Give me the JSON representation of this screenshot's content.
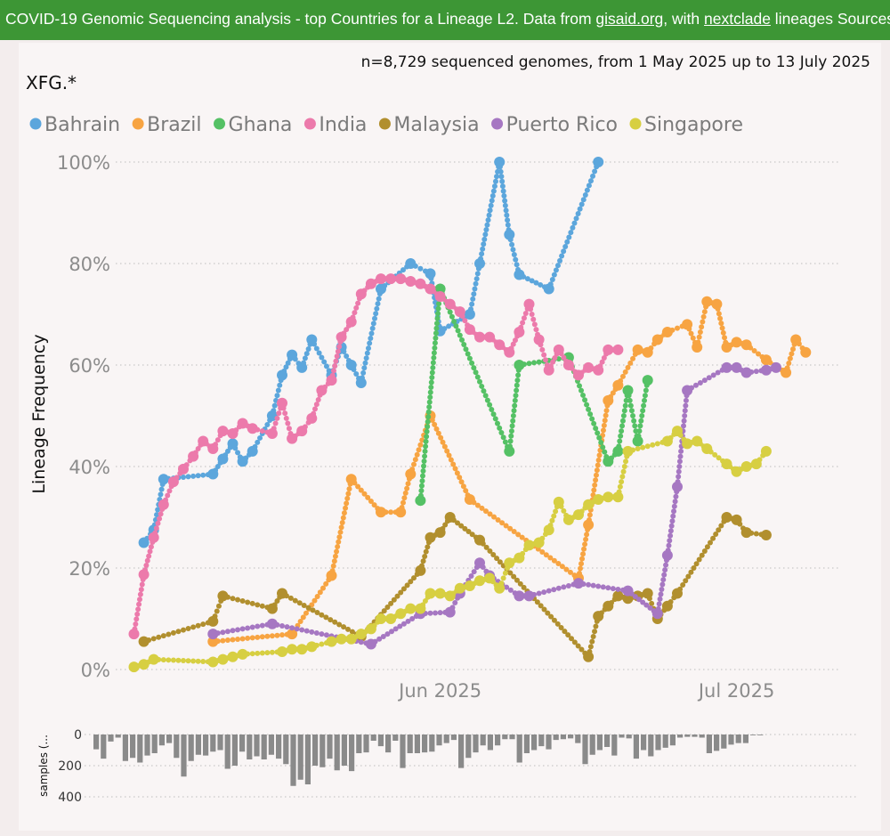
{
  "header": {
    "title_prefix": "COVID-19 Genomic Sequencing analysis - top Countries for a Lineage L2. Data from ",
    "link1": "gisaid.org",
    "title_mid": ", with ",
    "link2": "nextclade",
    "title_suffix": " lineages Sources"
  },
  "chart_data": {
    "type": "line",
    "title": "XFG.*",
    "subtitle": "n=8,729 sequenced genomes, from 1 May 2025 up to 13 July 2025",
    "ylabel": "Lineage Frequency",
    "ylim": [
      0,
      100
    ],
    "y_ticks": [
      "0%",
      "20%",
      "40%",
      "60%",
      "80%",
      "100%"
    ],
    "x_ticks": [
      {
        "day": 31,
        "label": "Jun 2025"
      },
      {
        "day": 61,
        "label": "Jul 2025"
      }
    ],
    "x_unit": "days since 2025-05-01",
    "legend_position": "top-left",
    "series": [
      {
        "name": "Bahrain",
        "color": "#5ca6dc",
        "points": [
          [
            1,
            25
          ],
          [
            2,
            27.5
          ],
          [
            3,
            37.5
          ],
          [
            8,
            38.5
          ],
          [
            9,
            41.5
          ],
          [
            10,
            44.5
          ],
          [
            11,
            41
          ],
          [
            12,
            43
          ],
          [
            14,
            50
          ],
          [
            15,
            58
          ],
          [
            16,
            62
          ],
          [
            17,
            59.5
          ],
          [
            18,
            65
          ],
          [
            20,
            58
          ],
          [
            21,
            63.5
          ],
          [
            22,
            60
          ],
          [
            23,
            56.5
          ],
          [
            25,
            75
          ],
          [
            28,
            80
          ],
          [
            30,
            78
          ],
          [
            31,
            66.7
          ],
          [
            34,
            70
          ],
          [
            35,
            80
          ],
          [
            37,
            100
          ],
          [
            38,
            85.7
          ],
          [
            39,
            77.8
          ],
          [
            42,
            75
          ],
          [
            47,
            100
          ]
        ]
      },
      {
        "name": "Brazil",
        "color": "#f7a442",
        "points": [
          [
            8,
            5.5
          ],
          [
            16,
            7
          ],
          [
            20,
            18.5
          ],
          [
            22,
            37.5
          ],
          [
            25,
            31
          ],
          [
            27,
            31
          ],
          [
            28,
            38.5
          ],
          [
            30,
            50
          ],
          [
            34,
            33.5
          ],
          [
            45,
            18
          ],
          [
            46,
            28.5
          ],
          [
            48,
            53
          ],
          [
            49,
            56
          ],
          [
            51,
            63
          ],
          [
            52,
            62.5
          ],
          [
            53,
            65
          ],
          [
            54,
            66.5
          ],
          [
            56,
            68
          ],
          [
            57,
            63.5
          ],
          [
            58,
            72.5
          ],
          [
            59,
            72
          ],
          [
            60,
            63.5
          ],
          [
            61,
            64.5
          ],
          [
            62,
            64
          ],
          [
            64,
            61
          ],
          [
            66,
            58.5
          ],
          [
            67,
            65
          ],
          [
            68,
            62.5
          ]
        ]
      },
      {
        "name": "Ghana",
        "color": "#55c165",
        "points": [
          [
            29,
            33.3
          ],
          [
            31,
            75
          ],
          [
            38,
            43
          ],
          [
            39,
            60
          ],
          [
            44,
            61.5
          ],
          [
            48,
            41
          ],
          [
            49,
            43
          ],
          [
            50,
            55
          ],
          [
            51,
            45
          ],
          [
            52,
            57
          ]
        ]
      },
      {
        "name": "India",
        "color": "#ec7aab",
        "points": [
          [
            0,
            7
          ],
          [
            1,
            18.7
          ],
          [
            2,
            26
          ],
          [
            3,
            32.5
          ],
          [
            4,
            37
          ],
          [
            5,
            39.5
          ],
          [
            6,
            42
          ],
          [
            7,
            45
          ],
          [
            8,
            43.5
          ],
          [
            9,
            47
          ],
          [
            10,
            46.5
          ],
          [
            11,
            48.5
          ],
          [
            12,
            47.5
          ],
          [
            14,
            46.5
          ],
          [
            15,
            52.5
          ],
          [
            16,
            45.5
          ],
          [
            17,
            47
          ],
          [
            18,
            49.5
          ],
          [
            19,
            55
          ],
          [
            20,
            57
          ],
          [
            21,
            65.5
          ],
          [
            22,
            68.5
          ],
          [
            23,
            74
          ],
          [
            24,
            76
          ],
          [
            25,
            77
          ],
          [
            26,
            77
          ],
          [
            27,
            77
          ],
          [
            28,
            76.5
          ],
          [
            29,
            76
          ],
          [
            30,
            75
          ],
          [
            31,
            73.5
          ],
          [
            32,
            72
          ],
          [
            33,
            70.5
          ],
          [
            34,
            67
          ],
          [
            35,
            65.5
          ],
          [
            36,
            65.5
          ],
          [
            37,
            64
          ],
          [
            38,
            62.5
          ],
          [
            39,
            66.5
          ],
          [
            40,
            72
          ],
          [
            41,
            65
          ],
          [
            42,
            59
          ],
          [
            43,
            63
          ],
          [
            44,
            60
          ],
          [
            45,
            58
          ],
          [
            46,
            59.5
          ],
          [
            47,
            59
          ],
          [
            48,
            63
          ],
          [
            49,
            63
          ]
        ]
      },
      {
        "name": "Malaysia",
        "color": "#b18f2e",
        "points": [
          [
            1,
            5.5
          ],
          [
            8,
            9.5
          ],
          [
            9,
            14.5
          ],
          [
            14,
            12
          ],
          [
            15,
            15
          ],
          [
            23,
            6.5
          ],
          [
            29,
            19.5
          ],
          [
            30,
            26
          ],
          [
            31,
            27
          ],
          [
            32,
            30
          ],
          [
            35,
            25.5
          ],
          [
            46,
            2.5
          ],
          [
            47,
            10.5
          ],
          [
            48,
            12.5
          ],
          [
            49,
            14.5
          ],
          [
            50,
            14
          ],
          [
            51,
            14.5
          ],
          [
            52,
            15
          ],
          [
            53,
            10
          ],
          [
            54,
            12.5
          ],
          [
            55,
            15
          ],
          [
            60,
            30
          ],
          [
            61,
            29.5
          ],
          [
            62,
            27
          ],
          [
            64,
            26.5
          ]
        ]
      },
      {
        "name": "Puerto Rico",
        "color": "#a677c2",
        "points": [
          [
            8,
            7
          ],
          [
            14,
            9
          ],
          [
            24,
            5
          ],
          [
            29,
            11
          ],
          [
            32,
            11.3
          ],
          [
            33,
            15
          ],
          [
            35,
            21
          ],
          [
            36,
            18.5
          ],
          [
            39,
            14.5
          ],
          [
            40,
            14.5
          ],
          [
            45,
            17
          ],
          [
            50,
            15.5
          ],
          [
            53,
            11
          ],
          [
            54,
            22.5
          ],
          [
            55,
            36
          ],
          [
            56,
            55
          ],
          [
            60,
            59.5
          ],
          [
            61,
            59.5
          ],
          [
            62,
            58.5
          ],
          [
            64,
            59
          ],
          [
            65,
            59.5
          ]
        ]
      },
      {
        "name": "Singapore",
        "color": "#d7cf42",
        "points": [
          [
            0,
            0.5
          ],
          [
            1,
            1
          ],
          [
            2,
            2
          ],
          [
            8,
            1.5
          ],
          [
            9,
            2
          ],
          [
            10,
            2.5
          ],
          [
            11,
            3
          ],
          [
            15,
            3.5
          ],
          [
            16,
            4
          ],
          [
            17,
            4
          ],
          [
            18,
            4.5
          ],
          [
            20,
            5.5
          ],
          [
            21,
            6
          ],
          [
            22,
            6
          ],
          [
            23,
            7
          ],
          [
            24,
            8
          ],
          [
            25,
            10
          ],
          [
            26,
            10
          ],
          [
            27,
            11
          ],
          [
            28,
            12
          ],
          [
            29,
            12
          ],
          [
            30,
            15
          ],
          [
            31,
            15
          ],
          [
            32,
            14.5
          ],
          [
            33,
            16
          ],
          [
            34,
            16.5
          ],
          [
            35,
            17.5
          ],
          [
            36,
            18
          ],
          [
            37,
            16
          ],
          [
            38,
            21
          ],
          [
            39,
            22
          ],
          [
            40,
            24.5
          ],
          [
            41,
            25
          ],
          [
            42,
            27.5
          ],
          [
            43,
            33
          ],
          [
            44,
            29.5
          ],
          [
            45,
            30.5
          ],
          [
            46,
            32.5
          ],
          [
            47,
            33.5
          ],
          [
            48,
            34
          ],
          [
            49,
            34
          ],
          [
            50,
            43
          ],
          [
            54,
            45
          ],
          [
            55,
            47
          ],
          [
            56,
            44.5
          ],
          [
            57,
            45
          ],
          [
            58,
            43.5
          ],
          [
            60,
            40.5
          ],
          [
            61,
            39
          ],
          [
            62,
            40
          ],
          [
            63,
            40.5
          ],
          [
            64,
            43
          ]
        ]
      }
    ],
    "samples": {
      "label": "samples (...",
      "ticks": [
        "0",
        "200",
        "400"
      ],
      "max": 400,
      "values": [
        95,
        155,
        45,
        20,
        170,
        150,
        180,
        135,
        120,
        70,
        55,
        150,
        270,
        170,
        130,
        135,
        110,
        100,
        220,
        200,
        110,
        160,
        140,
        160,
        130,
        155,
        190,
        330,
        290,
        320,
        200,
        210,
        155,
        230,
        200,
        235,
        120,
        115,
        40,
        75,
        115,
        40,
        215,
        120,
        120,
        115,
        110,
        70,
        55,
        35,
        215,
        150,
        115,
        70,
        100,
        70,
        30,
        30,
        180,
        120,
        100,
        75,
        95,
        35,
        30,
        25,
        55,
        190,
        130,
        100,
        80,
        135,
        20,
        25,
        155,
        100,
        140,
        100,
        85,
        70,
        20,
        15,
        15,
        20,
        120,
        105,
        90,
        65,
        55,
        55,
        5,
        5
      ]
    }
  }
}
